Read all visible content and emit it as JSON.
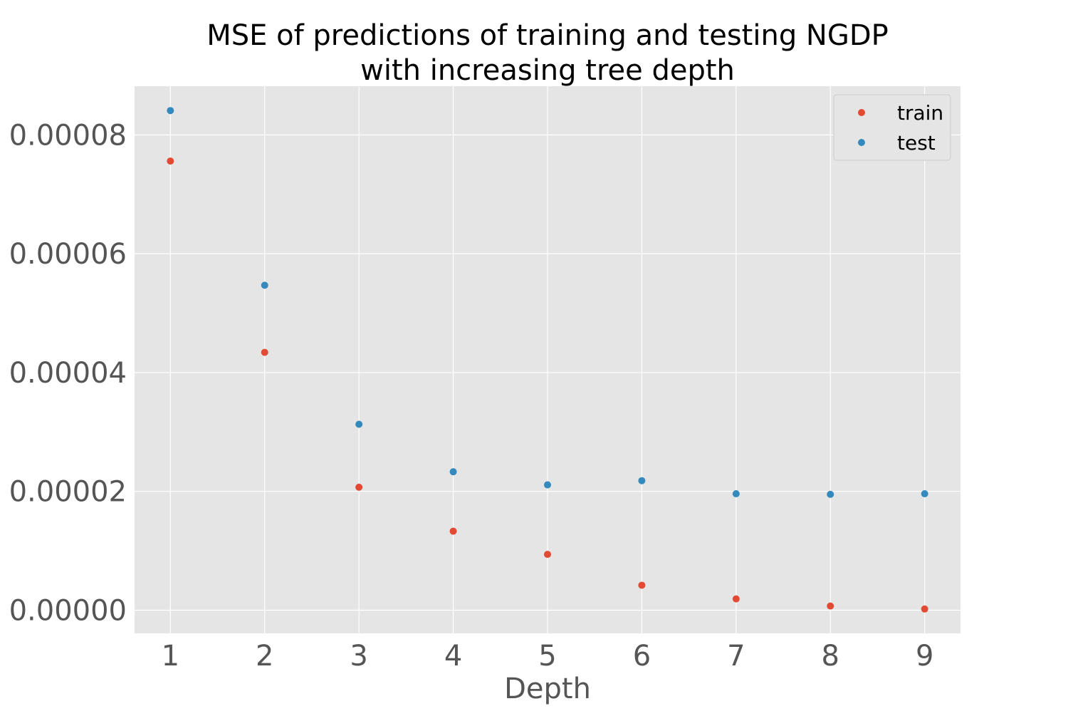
{
  "chart_data": {
    "type": "scatter",
    "title_lines": [
      "MSE of predictions of training and testing NGDP",
      "with increasing tree depth"
    ],
    "xlabel": "Depth",
    "ylabel": "",
    "x": [
      1,
      2,
      3,
      4,
      5,
      6,
      7,
      8,
      9
    ],
    "xlim": [
      0.62,
      9.38
    ],
    "ylim": [
      -3.9e-06,
      8.82e-05
    ],
    "x_ticks": [
      1,
      2,
      3,
      4,
      5,
      6,
      7,
      8,
      9
    ],
    "x_tick_labels": [
      "1",
      "2",
      "3",
      "4",
      "5",
      "6",
      "7",
      "8",
      "9"
    ],
    "y_ticks": [
      0.0,
      2e-05,
      4e-05,
      6e-05,
      8e-05
    ],
    "y_tick_labels": [
      "0.00000",
      "0.00002",
      "0.00004",
      "0.00006",
      "0.00008"
    ],
    "grid": true,
    "legend_position": "top-right",
    "series": [
      {
        "name": "train",
        "color": "#E24A33",
        "values": [
          7.56e-05,
          4.34e-05,
          2.07e-05,
          1.33e-05,
          9.4e-06,
          4.2e-06,
          1.9e-06,
          7e-07,
          2e-07
        ]
      },
      {
        "name": "test",
        "color": "#348ABD",
        "values": [
          8.41e-05,
          5.47e-05,
          3.13e-05,
          2.33e-05,
          2.11e-05,
          2.18e-05,
          1.96e-05,
          1.95e-05,
          1.96e-05
        ]
      }
    ]
  }
}
